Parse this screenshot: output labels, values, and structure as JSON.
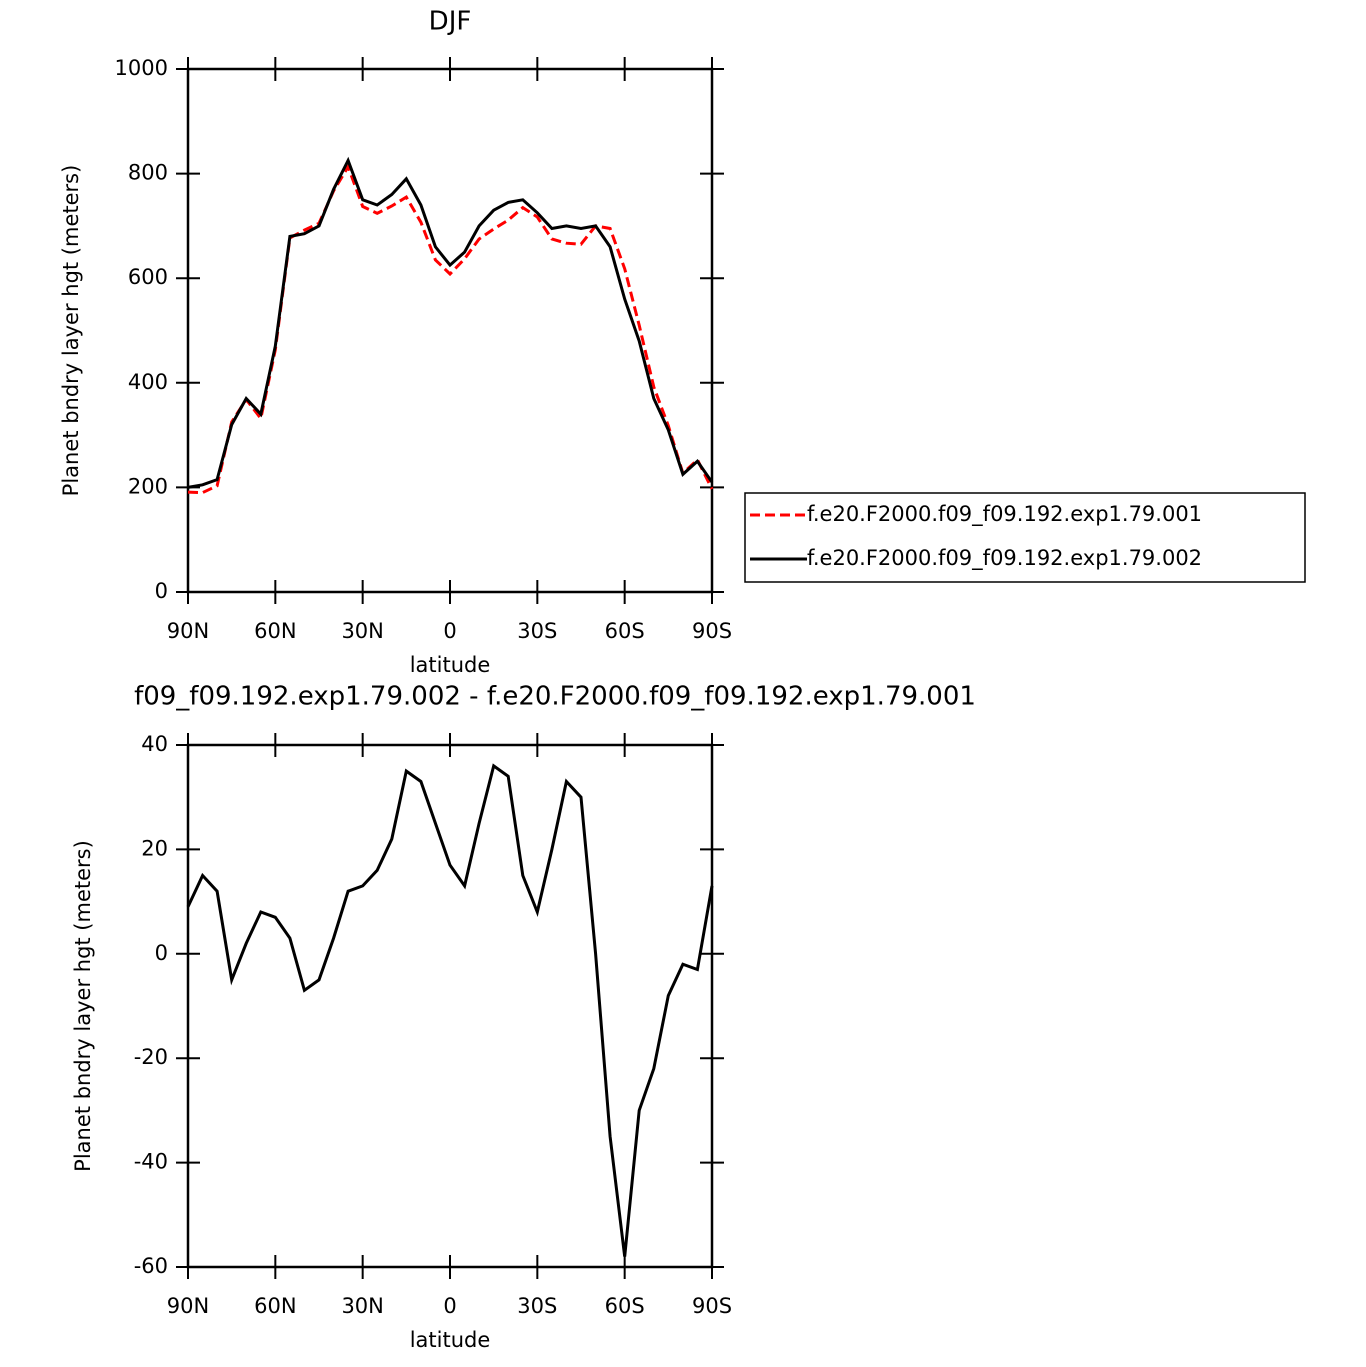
{
  "chart_data": [
    {
      "type": "line",
      "title": "DJF",
      "xlabel": "latitude",
      "ylabel": "Planet bndry layer hgt (meters)",
      "x": [
        90,
        85,
        80,
        75,
        70,
        65,
        60,
        55,
        50,
        45,
        40,
        35,
        30,
        25,
        20,
        15,
        10,
        5,
        0,
        -5,
        -10,
        -15,
        -20,
        -25,
        -30,
        -35,
        -40,
        -45,
        -50,
        -55,
        -60,
        -65,
        -70,
        -75,
        -80,
        -85,
        -90
      ],
      "series": [
        {
          "name": "f.e20.F2000.f09_f09.192.exp1.79.001",
          "color": "#ff0000",
          "line_style": "dashed",
          "values": [
            191,
            190,
            203,
            325,
            368,
            332,
            463,
            677,
            692,
            705,
            767,
            813,
            737,
            724,
            738,
            755,
            707,
            635,
            608,
            637,
            675,
            694,
            711,
            735,
            717,
            675,
            667,
            665,
            700,
            695,
            618,
            510,
            392,
            318,
            227,
            253,
            197
          ]
        },
        {
          "name": "f.e20.F2000.f09_f09.192.exp1.79.002",
          "color": "#000000",
          "line_style": "solid",
          "values": [
            200,
            205,
            215,
            320,
            370,
            340,
            470,
            680,
            685,
            700,
            770,
            825,
            750,
            740,
            760,
            790,
            740,
            660,
            625,
            650,
            700,
            730,
            745,
            750,
            725,
            695,
            700,
            695,
            700,
            660,
            560,
            480,
            370,
            310,
            225,
            250,
            210
          ]
        }
      ],
      "xlim": [
        90,
        -90
      ],
      "xticks": [
        {
          "value": 90,
          "label": "90N"
        },
        {
          "value": 60,
          "label": "60N"
        },
        {
          "value": 30,
          "label": "30N"
        },
        0,
        {
          "value": -30,
          "label": "30S"
        },
        {
          "value": -60,
          "label": "60S"
        },
        {
          "value": -90,
          "label": "90S"
        }
      ],
      "ylim": [
        0,
        1000
      ],
      "yticks": [
        0,
        200,
        400,
        600,
        800,
        1000
      ],
      "legend": "right"
    },
    {
      "type": "line",
      "title": "f09_f09.192.exp1.79.002 - f.e20.F2000.f09_f09.192.exp1.79.001",
      "xlabel": "latitude",
      "ylabel": "Planet bndry layer hgt (meters)",
      "x": [
        90,
        85,
        80,
        75,
        70,
        65,
        60,
        55,
        50,
        45,
        40,
        35,
        30,
        25,
        20,
        15,
        10,
        5,
        0,
        -5,
        -10,
        -15,
        -20,
        -25,
        -30,
        -35,
        -40,
        -45,
        -50,
        -55,
        -60,
        -65,
        -70,
        -75,
        -80,
        -85,
        -90
      ],
      "values": [
        9,
        15,
        12,
        -5,
        2,
        8,
        7,
        3,
        -7,
        -5,
        3,
        12,
        13,
        16,
        22,
        35,
        33,
        25,
        17,
        13,
        25,
        36,
        34,
        15,
        8,
        20,
        33,
        30,
        0,
        -35,
        -58,
        -30,
        -22,
        -8,
        -2,
        -3,
        13
      ],
      "color": "#000000",
      "xlim": [
        90,
        -90
      ],
      "xticks": [
        {
          "value": 90,
          "label": "90N"
        },
        {
          "value": 60,
          "label": "60N"
        },
        {
          "value": 30,
          "label": "30N"
        },
        0,
        {
          "value": -30,
          "label": "30S"
        },
        {
          "value": -60,
          "label": "60S"
        },
        {
          "value": -90,
          "label": "90S"
        }
      ],
      "ylim": [
        -60,
        40
      ],
      "yticks": [
        -60,
        -40,
        -20,
        0,
        20,
        40
      ]
    }
  ]
}
